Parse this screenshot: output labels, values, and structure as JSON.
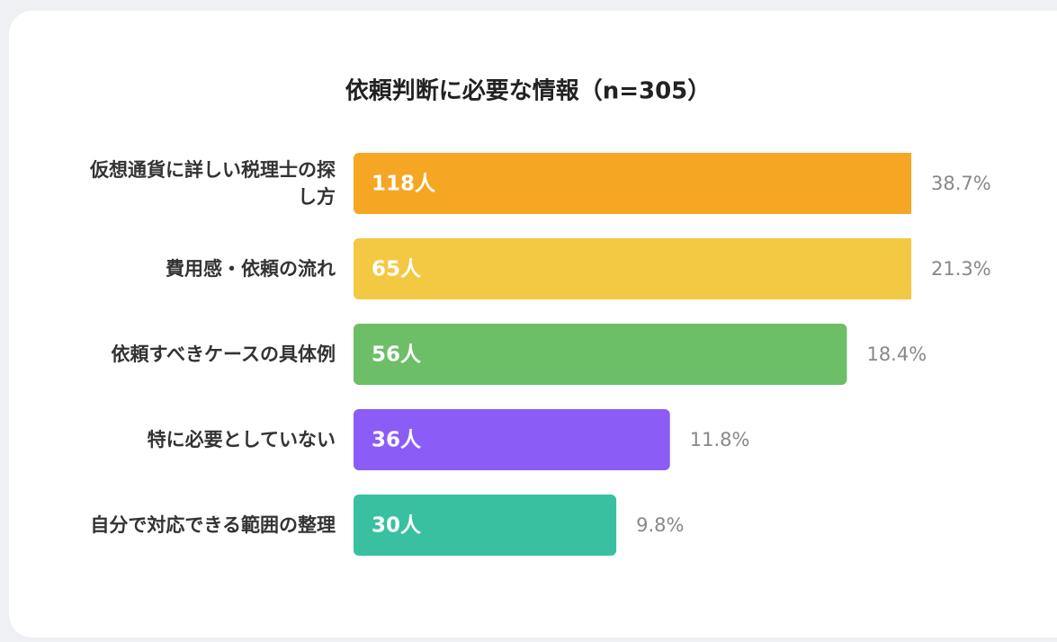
{
  "chart_data": {
    "type": "hbar",
    "title": "依頼判断に必要な情報（n=305）",
    "categories": [
      "仮想通貨に詳しい税理士の探し方",
      "費用感・依頼の流れ",
      "依頼すべきケースの具体例",
      "特に必要としていない",
      "自分で対応できる範囲の整理"
    ],
    "values": [
      38.7,
      21.3,
      18.4,
      11.8,
      9.8
    ],
    "value_labels": [
      "38.7%",
      "21.3%",
      "18.4%",
      "11.8%",
      "9.8%"
    ],
    "counts": [
      118,
      65,
      56,
      36,
      30
    ],
    "count_labels": [
      "118人",
      "65人",
      "56人",
      "36人",
      "30人"
    ],
    "colors": [
      "#f5a623",
      "#f3c843",
      "#6cbf67",
      "#8b5cf6",
      "#38c0a1"
    ],
    "xlim": [
      0,
      20.8
    ]
  }
}
